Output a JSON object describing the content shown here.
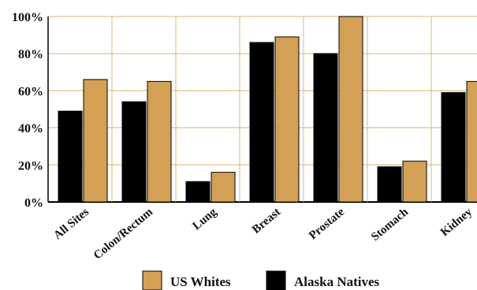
{
  "chart_data": {
    "type": "bar",
    "title": "",
    "xlabel": "",
    "ylabel": "",
    "categories": [
      "All Sites",
      "Colon/Rectum",
      "Lung",
      "Breast",
      "Prostate",
      "Stomach",
      "Kidney"
    ],
    "series": [
      {
        "name": "Alaska Natives",
        "color": "#000000",
        "values": [
          49,
          54,
          11,
          86,
          80,
          19,
          59
        ]
      },
      {
        "name": "US Whites",
        "color": "#D4A055",
        "values": [
          66,
          65,
          16,
          89,
          100,
          22,
          65
        ]
      }
    ],
    "ylim": [
      0,
      100
    ],
    "yticks": [
      0,
      20,
      40,
      60,
      80,
      100
    ],
    "ytick_labels": [
      "0%",
      "20%",
      "40%",
      "60%",
      "80%",
      "100%"
    ],
    "grid": true,
    "grid_color": "#D9B77A",
    "legend": {
      "placement": "bottom-center",
      "entries": [
        {
          "label": "US Whites",
          "color": "#D4A055"
        },
        {
          "label": "Alaska Natives",
          "color": "#000000"
        }
      ]
    }
  }
}
